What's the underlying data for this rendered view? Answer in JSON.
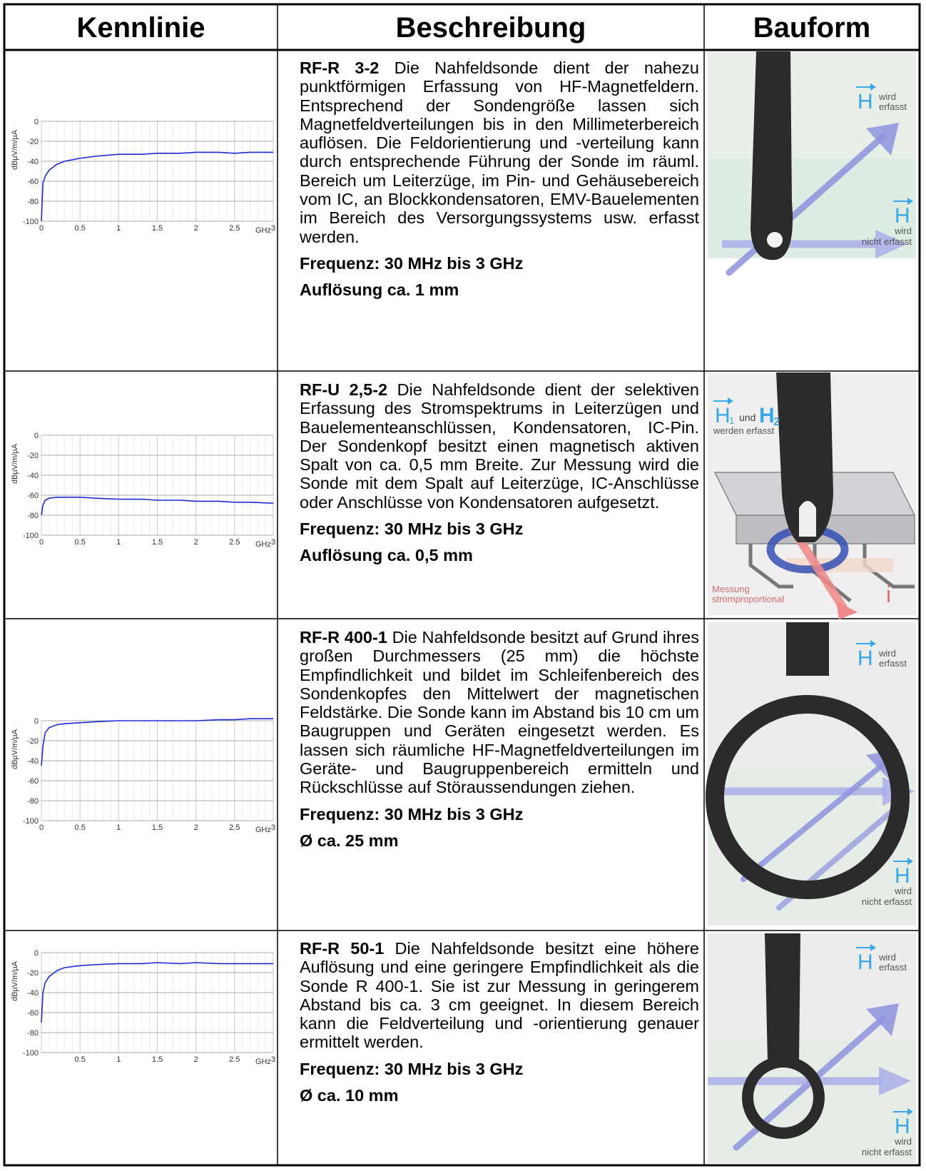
{
  "table": {
    "headers": [
      "Kennlinie",
      "Beschreibung",
      "Bauform"
    ],
    "rows": [
      {
        "model": "RF-R 3-2",
        "text": "Die Nahfeldsonde dient der nahezu punktförmigen Erfassung von HF-Magnet­feldern. Entsprechend der Sondengröße lassen sich Magnetfeldverteilungen bis in den Millimeterbereich auflösen. Die Feldorientierung und -verteilung kann durch entsprechende Führung der Sonde im räuml. Bereich um Leiterzüge, im Pin- und Gehäusebereich vom IC, an Blockkondensatoren, EMV-Bauelementen im Bereich des Versorgungssystems usw. erfasst werden.",
        "frequency": "Frequenz: 30 MHz bis 3 GHz",
        "resolution": "Auflösung ca. 1 mm",
        "probe_labels": {
          "top_word": "wird",
          "top_word2": "erfasst",
          "bottom_word": "wird",
          "bottom_word2": "nicht erfasst",
          "symbol": "H"
        }
      },
      {
        "model": "RF-U 2,5-2",
        "text": "Die Nahfeldsonde dient der selektiven Erfassung des Stromspektrums in Leiterzügen und Bauelementeanschlüssen, Kondensatoren, IC-Pin. Der Sondenkopf besitzt einen magnetisch aktiven Spalt von ca. 0,5 mm Breite. Zur Messung wird die Sonde mit dem Spalt auf Leiterzüge, IC-Anschlüsse oder Anschlüsse von Kondensatoren aufgesetzt.",
        "frequency": "Frequenz: 30 MHz bis 3 GHz",
        "resolution": "Auflösung ca. 0,5 mm",
        "probe_labels": {
          "top_word": "und",
          "top_word2": "werden erfasst",
          "bottom_word": "Messung",
          "bottom_word2": "stromproportional",
          "symbol": "H",
          "sub1": "1",
          "sub2": "2",
          "current": "i"
        }
      },
      {
        "model": "RF-R 400-1",
        "text": "Die Nahfeldsonde besitzt auf Grund ihres großen Durchmessers (25 mm) die höchste Empfindlichkeit und bildet im Schleifenbereich des Sondenkopfes den Mittelwert der magnetischen Feldstärke. Die Sonde kann im Abstand bis 10 cm  um Baugruppen und Geräten eingesetzt werden. Es lassen sich räumliche HF-Magnetfeldverteilungen im Geräte- und Baugruppenbereich ermitteln und Rückschlüsse auf Störaussendungen ziehen.",
        "frequency": "Frequenz: 30 MHz bis 3 GHz",
        "resolution": "Ø ca. 25 mm",
        "probe_labels": {
          "top_word": "wird",
          "top_word2": "erfasst",
          "bottom_word": "wird",
          "bottom_word2": "nicht erfasst",
          "symbol": "H"
        }
      },
      {
        "model": "RF-R 50-1",
        "text": "Die Nahfeldsonde besitzt eine höhere Auflösung und eine geringere Empfindlichkeit als die Sonde R 400-1. Sie ist zur Messung in geringerem Abstand bis ca. 3 cm geeignet. In diesem Bereich kann die Feldverteilung und -orientierung genauer ermittelt werden.",
        "frequency": "Frequenz: 30 MHz bis 3 GHz",
        "resolution": "Ø ca. 10 mm",
        "probe_labels": {
          "top_word": "wird",
          "top_word2": "erfasst",
          "bottom_word": "wird",
          "bottom_word2": "nicht erfasst",
          "symbol": "H"
        }
      }
    ]
  },
  "chart_data": [
    {
      "type": "line",
      "ylabel": "dBµV/m/µA",
      "xunit": "GHz",
      "xlim": [
        0,
        3
      ],
      "ylim": [
        -100,
        0
      ],
      "xticks": [
        "0",
        "0.5",
        "1",
        "1.5",
        "2",
        "2.5",
        "3"
      ],
      "yticks": [
        "0",
        "-20",
        "-40",
        "-60",
        "-80",
        "-100"
      ],
      "grid": true,
      "line_color": "#1f2bd6",
      "x": [
        0.0,
        0.02,
        0.05,
        0.1,
        0.2,
        0.3,
        0.5,
        0.7,
        1.0,
        1.3,
        1.5,
        1.8,
        2.0,
        2.3,
        2.5,
        2.7,
        3.0
      ],
      "y": [
        -100,
        -62,
        -55,
        -49,
        -43,
        -40,
        -37,
        -35,
        -33,
        -33,
        -32,
        -32,
        -31,
        -31,
        -32,
        -31,
        -31
      ]
    },
    {
      "type": "line",
      "ylabel": "dBµV/m/µA",
      "xunit": "GHz",
      "xlim": [
        0,
        3
      ],
      "ylim": [
        -100,
        0
      ],
      "xticks": [
        "0",
        "0.5",
        "1",
        "1.5",
        "2",
        "2.5",
        "3"
      ],
      "yticks": [
        "0",
        "-20",
        "-40",
        "-60",
        "-80",
        "-100"
      ],
      "grid": true,
      "line_color": "#1f2bd6",
      "x": [
        0.0,
        0.02,
        0.05,
        0.1,
        0.2,
        0.3,
        0.5,
        0.7,
        1.0,
        1.3,
        1.5,
        1.8,
        2.0,
        2.3,
        2.5,
        2.7,
        3.0
      ],
      "y": [
        -80,
        -70,
        -65,
        -63,
        -62,
        -62,
        -62,
        -63,
        -64,
        -64,
        -65,
        -65,
        -66,
        -66,
        -67,
        -67,
        -68
      ]
    },
    {
      "type": "line",
      "ylabel": "dBµV/m/µA",
      "xunit": "GHz",
      "xlim": [
        0,
        3
      ],
      "ylim": [
        -100,
        0
      ],
      "xticks": [
        "0",
        "0.5",
        "1",
        "1.5",
        "2",
        "2.5",
        "3"
      ],
      "yticks": [
        "0",
        "-20",
        "-40",
        "-60",
        "-80",
        "-100"
      ],
      "grid": true,
      "line_color": "#1f2bd6",
      "x": [
        0.0,
        0.02,
        0.05,
        0.1,
        0.2,
        0.3,
        0.5,
        0.7,
        1.0,
        1.3,
        1.5,
        1.8,
        2.0,
        2.3,
        2.5,
        2.7,
        3.0
      ],
      "y": [
        -45,
        -25,
        -12,
        -7,
        -4,
        -3,
        -2,
        -1,
        0,
        0,
        0,
        0,
        0,
        1,
        1,
        2,
        2
      ]
    },
    {
      "type": "line",
      "ylabel": "dBµV/m/µA",
      "xunit": "GHz",
      "xlim": [
        0,
        3
      ],
      "ylim": [
        -100,
        0
      ],
      "xticks": [
        "",
        "0.5",
        "1",
        "1.5",
        "2",
        "2.5",
        "3"
      ],
      "yticks": [
        "0",
        "-20",
        "-40",
        "-60",
        "-80",
        "-100"
      ],
      "grid": true,
      "line_color": "#1f2bd6",
      "x": [
        0.0,
        0.02,
        0.05,
        0.1,
        0.2,
        0.3,
        0.5,
        0.7,
        1.0,
        1.3,
        1.5,
        1.8,
        2.0,
        2.3,
        2.5,
        2.7,
        3.0
      ],
      "y": [
        -70,
        -40,
        -30,
        -24,
        -18,
        -15,
        -13,
        -12,
        -11,
        -11,
        -10,
        -11,
        -10,
        -11,
        -11,
        -11,
        -11
      ]
    }
  ]
}
